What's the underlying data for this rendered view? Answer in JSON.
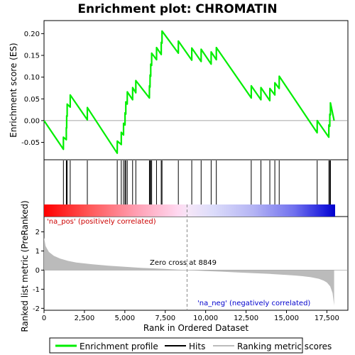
{
  "title": "Enrichment plot: CHROMATIN",
  "colors": {
    "es_line": "#00ee00",
    "hit": "#000000",
    "metric_fill": "#bbbbbb",
    "pos_text": "#cc0000",
    "neg_text": "#0000cc",
    "zero_cross_line": "#888888"
  },
  "annotations": {
    "pos_label": "'na_pos' (positively correlated)",
    "neg_label": "'na_neg' (negatively correlated)",
    "zero_cross": "Zero cross at 8849"
  },
  "legend": {
    "items": [
      {
        "label": "Enrichment profile"
      },
      {
        "label": "Hits"
      },
      {
        "label": "Ranking metric scores"
      }
    ]
  },
  "chart_data": {
    "type": "line",
    "title": "Enrichment plot: CHROMATIN",
    "xlabel": "Rank in Ordered Dataset",
    "ylabel_top": "Enrichment score (ES)",
    "ylabel_bottom": "Ranked list metric (PreRanked)",
    "xlim": [
      0,
      18800
    ],
    "es_ylim": [
      -0.09,
      0.23
    ],
    "metric_ylim": [
      -2.1,
      2.8
    ],
    "x_ticks": [
      0,
      2500,
      5000,
      7500,
      10000,
      12500,
      15000,
      17500
    ],
    "x_tick_labels": [
      "0",
      "2,500",
      "5,000",
      "7,500",
      "10,000",
      "12,500",
      "15,000",
      "17,500"
    ],
    "es_ticks": [
      -0.05,
      0.0,
      0.05,
      0.1,
      0.15,
      0.2
    ],
    "es_tick_labels": [
      "-0.05",
      "0.00",
      "0.05",
      "0.10",
      "0.15",
      "0.20"
    ],
    "metric_ticks": [
      -2,
      -1,
      0,
      1,
      2
    ],
    "metric_tick_labels": [
      "-2",
      "-1",
      "0",
      "1",
      "2"
    ],
    "zero_cross": 8849,
    "n_genes": 17950,
    "hits": [
      1200,
      1380,
      1400,
      1430,
      1620,
      2680,
      4530,
      4780,
      4920,
      5010,
      5060,
      5150,
      5480,
      5680,
      6520,
      6560,
      6600,
      6660,
      6960,
      7250,
      7300,
      8310,
      9140,
      9720,
      10340,
      10660,
      12820,
      13420,
      13970,
      14280,
      14550,
      16900,
      17620,
      17680,
      17720
    ],
    "es_profile": {
      "x": [
        0,
        1200,
        1201,
        1380,
        1381,
        1400,
        1401,
        1430,
        1431,
        1620,
        1621,
        2680,
        2681,
        4530,
        4531,
        4780,
        4781,
        4920,
        4921,
        5010,
        5011,
        5060,
        5061,
        5150,
        5151,
        5480,
        5481,
        5680,
        5681,
        6520,
        6521,
        6560,
        6561,
        6600,
        6601,
        6660,
        6661,
        6960,
        6961,
        7250,
        7251,
        7300,
        7301,
        8310,
        8311,
        9140,
        9141,
        9720,
        9721,
        10340,
        10341,
        10660,
        10661,
        12820,
        12821,
        13420,
        13421,
        13970,
        13971,
        14280,
        14281,
        14550,
        14551,
        16900,
        16901,
        17620,
        17621,
        17680,
        17681,
        17720,
        17721,
        17950
      ],
      "y": [
        0.0,
        -0.066,
        -0.038,
        -0.044,
        -0.016,
        -0.017,
        0.011,
        0.01,
        0.038,
        0.031,
        0.059,
        0.002,
        0.03,
        -0.075,
        -0.047,
        -0.055,
        -0.027,
        -0.033,
        -0.006,
        -0.01,
        0.018,
        0.015,
        0.043,
        0.038,
        0.066,
        0.048,
        0.076,
        0.064,
        0.092,
        0.052,
        0.08,
        0.077,
        0.105,
        0.102,
        0.13,
        0.127,
        0.155,
        0.14,
        0.168,
        0.152,
        0.18,
        0.178,
        0.206,
        0.155,
        0.183,
        0.139,
        0.167,
        0.136,
        0.164,
        0.13,
        0.158,
        0.14,
        0.168,
        0.052,
        0.08,
        0.048,
        0.076,
        0.046,
        0.074,
        0.059,
        0.087,
        0.074,
        0.102,
        -0.028,
        0.0,
        -0.038,
        -0.01,
        -0.013,
        0.015,
        0.013,
        0.041,
        0.0
      ]
    },
    "metric_profile": {
      "x": [
        0,
        100,
        300,
        600,
        1000,
        1500,
        2000,
        3000,
        4000,
        5000,
        6000,
        7000,
        8000,
        8849,
        10000,
        11000,
        12000,
        13000,
        14000,
        15000,
        15500,
        16000,
        16500,
        17000,
        17300,
        17500,
        17700,
        17850,
        17950
      ],
      "y": [
        1.7,
        1.25,
        0.95,
        0.75,
        0.6,
        0.48,
        0.4,
        0.3,
        0.23,
        0.17,
        0.12,
        0.08,
        0.04,
        0.0,
        -0.05,
        -0.08,
        -0.12,
        -0.16,
        -0.2,
        -0.25,
        -0.28,
        -0.32,
        -0.37,
        -0.45,
        -0.55,
        -0.65,
        -0.85,
        -1.2,
        -1.85
      ]
    }
  }
}
